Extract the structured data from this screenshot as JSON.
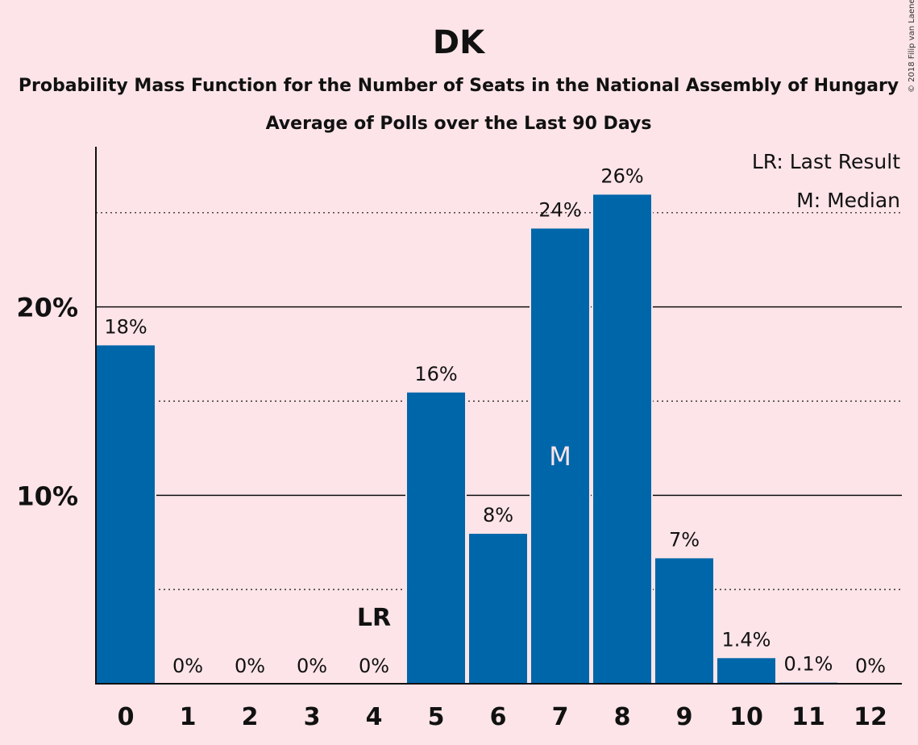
{
  "chart_data": {
    "type": "bar",
    "title": "DK",
    "subtitle": "Probability Mass Function for the Number of Seats in the National Assembly of Hungary",
    "subtitle2": "Average of Polls over the Last 90 Days",
    "copyright": "© 2018 Filip van Laenen",
    "legend": [
      "LR: Last Result",
      "M: Median"
    ],
    "categories": [
      "0",
      "1",
      "2",
      "3",
      "4",
      "5",
      "6",
      "7",
      "8",
      "9",
      "10",
      "11",
      "12"
    ],
    "values": [
      18,
      0,
      0,
      0,
      0,
      15.5,
      8,
      24.2,
      26,
      6.7,
      1.4,
      0.1,
      0
    ],
    "value_labels": [
      "18%",
      "0%",
      "0%",
      "0%",
      "0%",
      "16%",
      "8%",
      "24%",
      "26%",
      "7%",
      "1.4%",
      "0.1%",
      "0%"
    ],
    "ylim": [
      0,
      28.5
    ],
    "yticks": [
      {
        "value": 10,
        "label": "10%"
      },
      {
        "value": 20,
        "label": "20%"
      }
    ],
    "minor_gridlines": [
      5,
      15,
      25
    ],
    "last_result_seat": "4",
    "last_result_label": "LR",
    "median_seat": "7",
    "median_label": "M",
    "bar_color": "#0066aa",
    "background_color": "#fce4e8"
  }
}
